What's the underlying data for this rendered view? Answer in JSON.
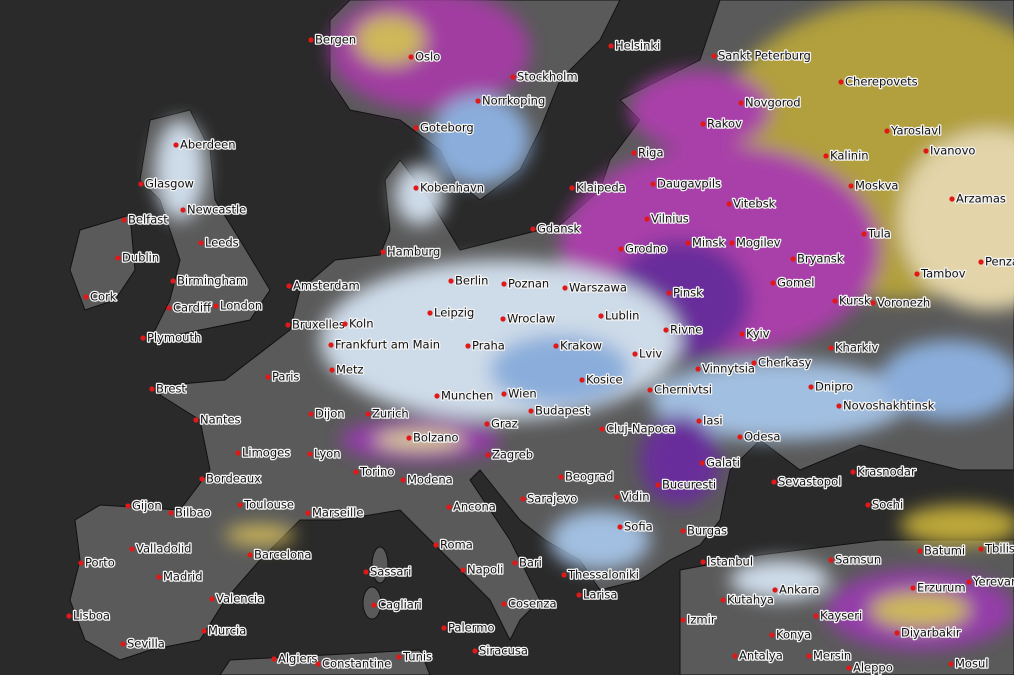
{
  "cities": [
    "Bergen",
    "Oslo",
    "Helsinki",
    "Sankt Peterburg",
    "Stockholm",
    "Norrkoping",
    "Cherepovets",
    "Novgorod",
    "Aberdeen",
    "Goteborg",
    "Rakov",
    "Yaroslavl",
    "Riga",
    "Ivanovo",
    "Kalinin",
    "Glasgow",
    "Kobenhavn",
    "Klaipeda",
    "Daugavpils",
    "Moskva",
    "Arzamas",
    "Newcastle",
    "Vitebsk",
    "Belfast",
    "Gdansk",
    "Vilnius",
    "Leeds",
    "Tula",
    "Dublin",
    "Hamburg",
    "Minsk",
    "Mogilev",
    "Grodno",
    "Bryansk",
    "Tambov",
    "Penza",
    "Birmingham",
    "Berlin",
    "Poznan",
    "Amsterdam",
    "Gomel",
    "Cork",
    "London",
    "Warszawa",
    "Cardiff",
    "Pinsk",
    "Kursk",
    "Voronezh",
    "Leipzig",
    "Bruxelles",
    "Koln",
    "Wroclaw",
    "Lublin",
    "Plymouth",
    "Rivne",
    "Kyiv",
    "Kharkiv",
    "Frankfurt am Main",
    "Praha",
    "Krakow",
    "Lviv",
    "Paris",
    "Metz",
    "Vinnytsia",
    "Cherkasy",
    "Kosice",
    "Dnipro",
    "Brest",
    "Chernivtsi",
    "Munchen",
    "Wien",
    "Novoshakhtinsk",
    "Budapest",
    "Nantes",
    "Dijon",
    "Zurich",
    "Graz",
    "Iasi",
    "Bolzano",
    "Cluj-Napoca",
    "Odesa",
    "Limoges",
    "Lyon",
    "Zagreb",
    "Galati",
    "Krasnodar",
    "Torino",
    "Bordeaux",
    "Modena",
    "Beograd",
    "Sevastopol",
    "Bucuresti",
    "Toulouse",
    "Marseille",
    "Ancona",
    "Vidin",
    "Gijon",
    "Bilbao",
    "Sarajevo",
    "Sochi",
    "Sofia",
    "Burgas",
    "Valladolid",
    "Barcelona",
    "Roma",
    "Bari",
    "Istanbul",
    "Samsun",
    "Batumi",
    "Tbilisi",
    "Porto",
    "Napoli",
    "Thessaloniki",
    "Madrid",
    "Ankara",
    "Erzurum",
    "Yerevan",
    "Sassari",
    "Valencia",
    "Larisa",
    "Kutahya",
    "Cosenza",
    "Cagliari",
    "Kayseri",
    "Lisboa",
    "Izmir",
    "Diyarbakir",
    "Murcia",
    "Palermo",
    "Konya",
    "Sevilla",
    "Siracusa",
    "Antalya",
    "Mersin",
    "Algiers",
    "Constantine",
    "Tunis",
    "Mosul",
    "Aleppo"
  ]
}
